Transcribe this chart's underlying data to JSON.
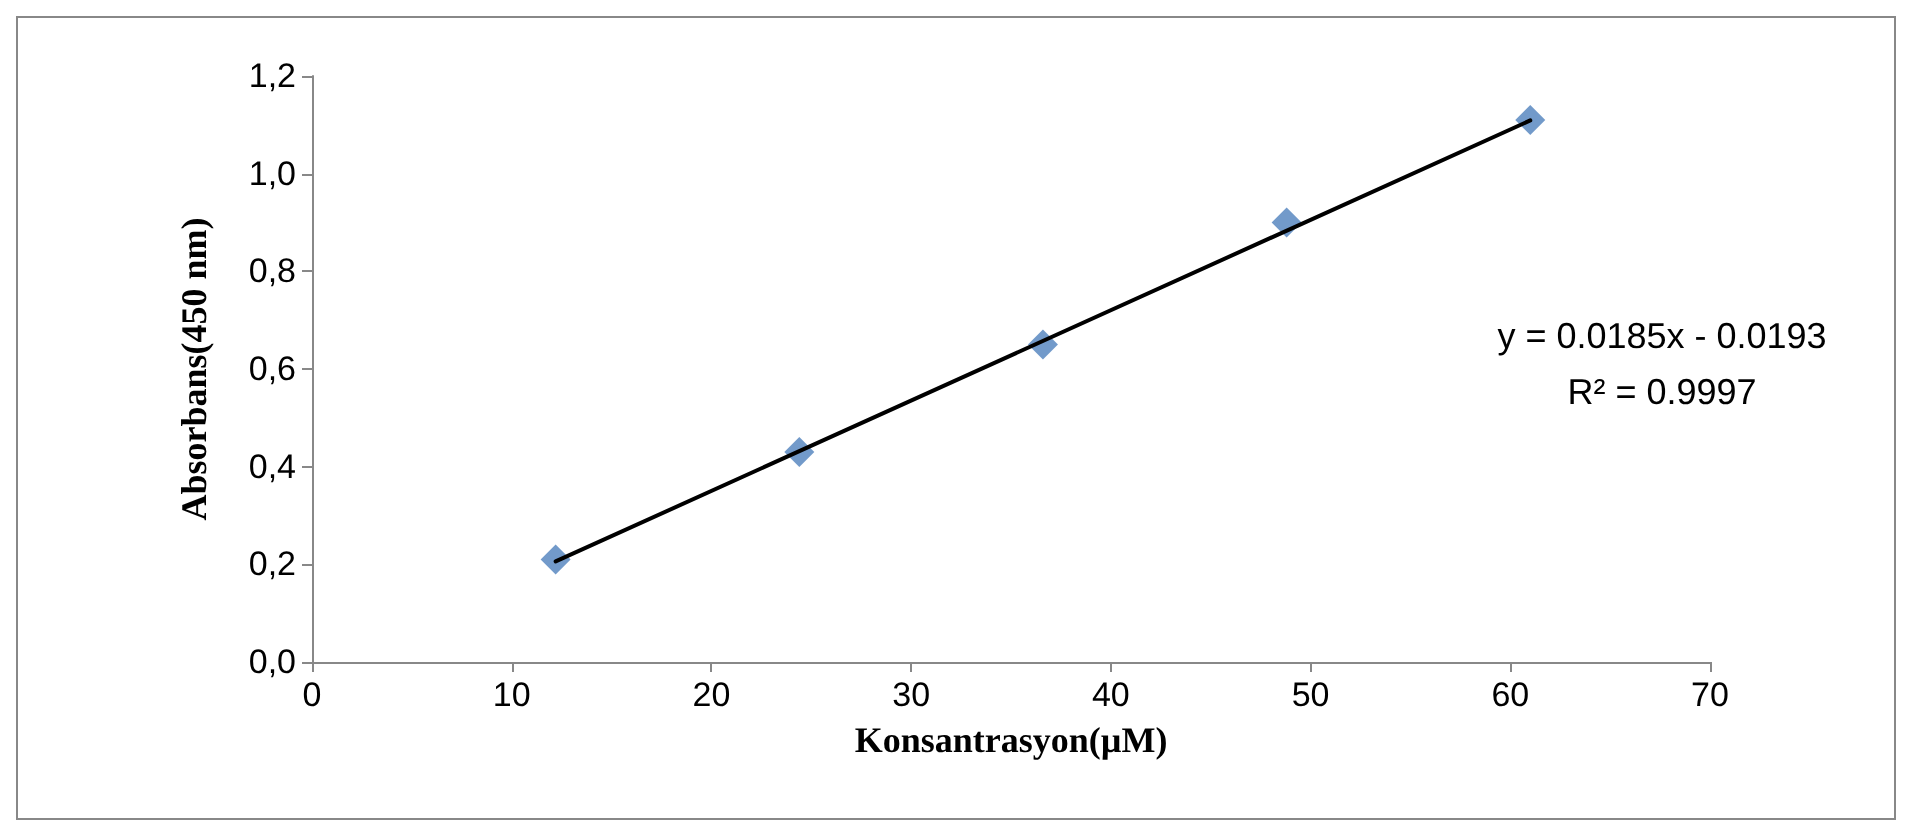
{
  "chart_data": {
    "type": "scatter",
    "xlabel": "Konsantrasyon(µM)",
    "ylabel": "Absorbans(450 nm)",
    "xlim": [
      0,
      70
    ],
    "xticks": [
      0,
      10,
      20,
      30,
      40,
      50,
      60,
      70
    ],
    "ylim": [
      0,
      1.2
    ],
    "yticks": [
      {
        "value": 0,
        "label": "0,0"
      },
      {
        "value": 0.2,
        "label": "0,2"
      },
      {
        "value": 0.4,
        "label": "0,4"
      },
      {
        "value": 0.6,
        "label": "0,6"
      },
      {
        "value": 0.8,
        "label": "0,8"
      },
      {
        "value": 1.0,
        "label": "1,0"
      },
      {
        "value": 1.2,
        "label": "1,2"
      }
    ],
    "grid": false,
    "marker": "diamond",
    "series": [
      {
        "color": "#4f81bd",
        "x": [
          12.2,
          24.4,
          36.6,
          48.8,
          61
        ],
        "values": [
          0.21,
          0.43,
          0.65,
          0.9,
          1.11
        ]
      },
      {
        "type": "line",
        "color": "#000000",
        "x": [
          12.2,
          61
        ],
        "values": [
          0.206,
          1.109
        ],
        "marker": "none",
        "line_style": "solid"
      }
    ],
    "annotations": [
      "y = 0.0185x - 0.0193",
      "R² = 0.9997"
    ]
  }
}
